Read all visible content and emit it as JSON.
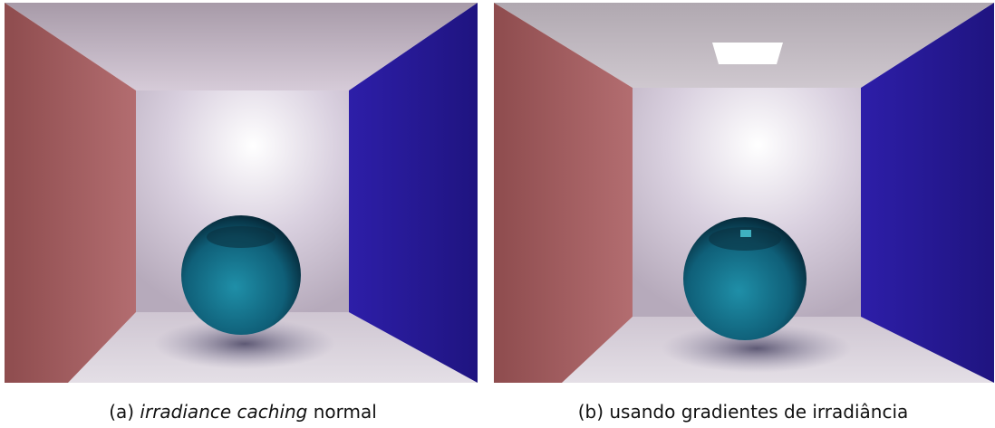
{
  "figures": [
    {
      "label": "(a)",
      "caption_italic": "irradiance caching",
      "caption_rest": "normal"
    },
    {
      "label": "(b)",
      "caption": "usando gradientes de irradiância"
    }
  ]
}
